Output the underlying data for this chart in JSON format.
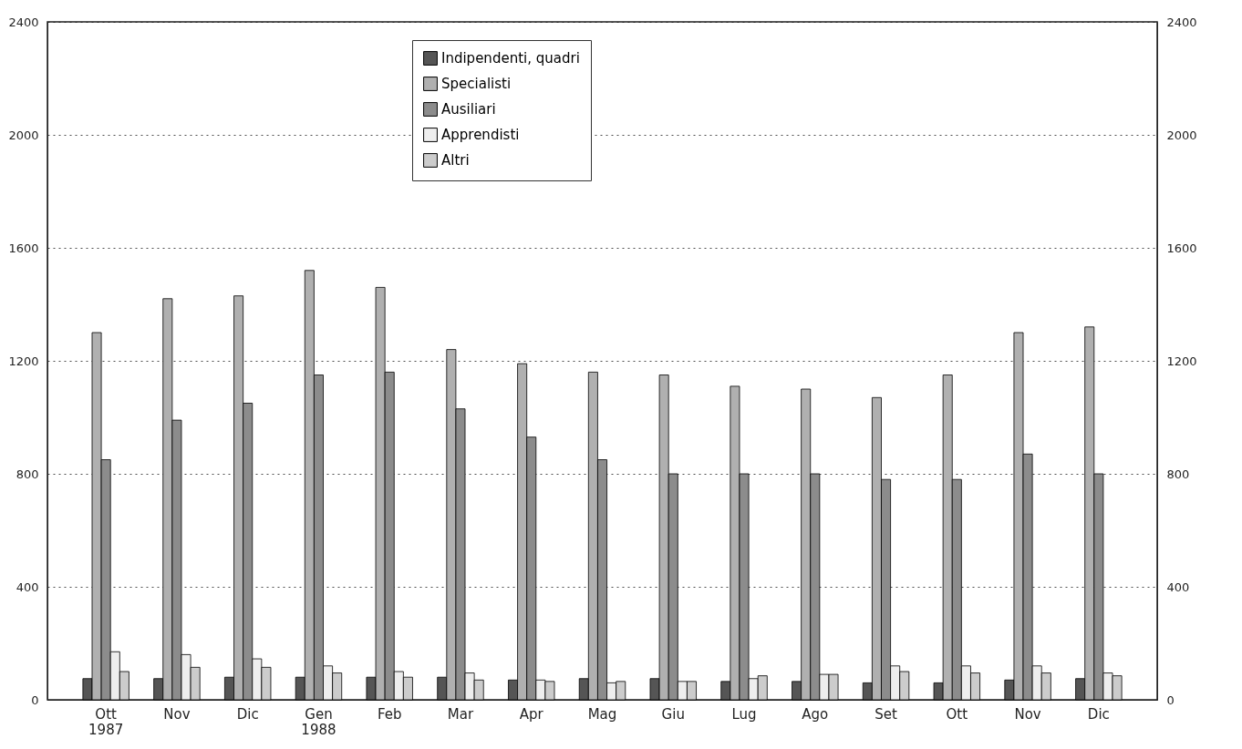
{
  "chart_data": {
    "type": "bar",
    "categories": [
      "Ott 1987",
      "Nov",
      "Dic",
      "Gen 1988",
      "Feb",
      "Mar",
      "Apr",
      "Mag",
      "Giu",
      "Lug",
      "Ago",
      "Set",
      "Ott",
      "Nov",
      "Dic"
    ],
    "series": [
      {
        "name": "Indipendenti, quadri",
        "color": "#555555",
        "values": [
          75,
          75,
          80,
          80,
          80,
          80,
          70,
          75,
          75,
          65,
          65,
          60,
          60,
          70,
          75
        ]
      },
      {
        "name": "Specialisti",
        "color": "#b0b0b0",
        "values": [
          1300,
          1420,
          1430,
          1520,
          1460,
          1240,
          1190,
          1160,
          1150,
          1110,
          1100,
          1070,
          1150,
          1300,
          1320
        ]
      },
      {
        "name": "Ausiliari",
        "color": "#8c8c8c",
        "values": [
          850,
          990,
          1050,
          1150,
          1160,
          1030,
          930,
          850,
          800,
          800,
          800,
          780,
          780,
          870,
          800
        ]
      },
      {
        "name": "Apprendisti",
        "color": "#eeeeee",
        "values": [
          170,
          160,
          145,
          120,
          100,
          95,
          70,
          60,
          65,
          75,
          90,
          120,
          120,
          120,
          95
        ]
      },
      {
        "name": "Altri",
        "color": "#cccccc",
        "values": [
          100,
          115,
          115,
          95,
          80,
          70,
          65,
          65,
          65,
          85,
          90,
          100,
          95,
          95,
          85
        ]
      }
    ],
    "ylim": [
      0,
      2400
    ],
    "yticks": [
      0,
      400,
      800,
      1200,
      1600,
      2000,
      2400
    ],
    "y2lim": [
      0,
      2400
    ],
    "y2ticks": [
      0,
      400,
      800,
      1200,
      1600,
      2000,
      2400
    ],
    "grid": "y",
    "legend": "top"
  }
}
